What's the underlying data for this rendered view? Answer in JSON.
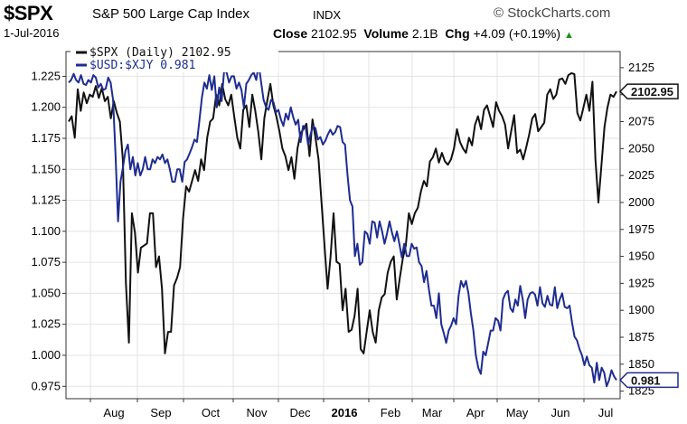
{
  "header": {
    "symbol": "$SPX",
    "name": "S&P 500 Large Cap Index",
    "exchange": "INDX",
    "brand": "© StockCharts.com",
    "date": "1-Jul-2016",
    "close_label": "Close",
    "close_value": "2102.95",
    "volume_label": "Volume",
    "volume_value": "2.1B",
    "chg_label": "Chg",
    "chg_value": "+4.09 (+0.19%)",
    "chg_arrow": "▲"
  },
  "chart_data": {
    "type": "line",
    "x_labels": [
      "Aug",
      "Sep",
      "Oct",
      "Nov",
      "Dec",
      "2016",
      "Feb",
      "Mar",
      "Apr",
      "May",
      "Jun",
      "Jul"
    ],
    "x_label_bold": "2016",
    "left_axis": {
      "ticks": [
        "1.225",
        "1.200",
        "1.175",
        "1.150",
        "1.125",
        "1.100",
        "1.075",
        "1.050",
        "1.025",
        "1.000",
        "0.975"
      ],
      "ylim": [
        0.965,
        1.245
      ]
    },
    "right_axis": {
      "ticks": [
        "2125",
        "2100",
        "2075",
        "2050",
        "2025",
        "2000",
        "1975",
        "1950",
        "1925",
        "1900",
        "1875",
        "1850",
        "1825"
      ],
      "ylim": [
        1818,
        2140
      ]
    },
    "grid": true,
    "legend_position": "top-left",
    "series": [
      {
        "name": "$SPX (Daily) 2102.95",
        "axis": "right",
        "color": "#111111",
        "last_value_label": "2102.95",
        "values": [
          2075,
          2080,
          2060,
          2105,
          2085,
          2102,
          2092,
          2100,
          2098,
          2108,
          2097,
          2106,
          2094,
          2098,
          2078,
          2094,
          2083,
          2075,
          2040,
          1925,
          1870,
          1990,
          1972,
          1935,
          1958,
          1960,
          1962,
          1990,
          1990,
          1940,
          1950,
          1920,
          1860,
          1880,
          1880,
          1923,
          1930,
          1940,
          1985,
          2015,
          2010,
          2020,
          2030,
          2020,
          2040,
          2030,
          2060,
          2075,
          2078,
          2100,
          2090,
          2110,
          2096,
          2090,
          2100,
          2080,
          2060,
          2050,
          2086,
          2090,
          2070,
          2100,
          2085,
          2065,
          2040,
          2078,
          2095,
          2110,
          2090,
          2080,
          2066,
          2050,
          2043,
          2030,
          2042,
          2022,
          2050,
          2064,
          2068,
          2073,
          2043,
          2077,
          2060,
          2040,
          2000,
          1960,
          1920,
          1950,
          1990,
          1945,
          1943,
          1900,
          1920,
          1880,
          1882,
          1895,
          1920,
          1864,
          1860,
          1880,
          1900,
          1880,
          1870,
          1900,
          1912,
          1915,
          1935,
          1945,
          1950,
          1910,
          1930,
          1948,
          1960,
          1990,
          1980,
          1990,
          1995,
          2010,
          2020,
          2015,
          2038,
          2042,
          2050,
          2037,
          2046,
          2038,
          2035,
          2040,
          2050,
          2068,
          2056,
          2050,
          2046,
          2060,
          2053,
          2072,
          2080,
          2068,
          2086,
          2090,
          2080,
          2070,
          2093,
          2085,
          2080,
          2072,
          2050,
          2066,
          2081,
          2046,
          2049,
          2040,
          2051,
          2063,
          2078,
          2082,
          2066,
          2070,
          2074,
          2100,
          2105,
          2096,
          2100,
          2114,
          2115,
          2110,
          2118,
          2120,
          2119,
          2083,
          2076,
          2088,
          2100,
          2085,
          2112,
          2040,
          2000,
          2035,
          2070,
          2088,
          2100,
          2098,
          2103
        ]
      },
      {
        "name": "$USD:$XJY 0.981",
        "axis": "left",
        "color": "#1e2d8f",
        "last_value_label": "0.981",
        "values": [
          1.22,
          1.222,
          1.227,
          1.222,
          1.22,
          1.226,
          1.219,
          1.218,
          1.222,
          1.22,
          1.226,
          1.224,
          1.216,
          1.219,
          1.214,
          1.215,
          1.224,
          1.22,
          1.206,
          1.16,
          1.108,
          1.14,
          1.152,
          1.165,
          1.17,
          1.15,
          1.16,
          1.145,
          1.155,
          1.145,
          1.15,
          1.16,
          1.15,
          1.15,
          1.158,
          1.155,
          1.16,
          1.158,
          1.162,
          1.155,
          1.158,
          1.15,
          1.14,
          1.14,
          1.15,
          1.15,
          1.14,
          1.156,
          1.158,
          1.163,
          1.168,
          1.174,
          1.172,
          1.19,
          1.208,
          1.22,
          1.215,
          1.226,
          1.214,
          1.225,
          1.2,
          1.216,
          1.205,
          1.23,
          1.228,
          1.22,
          1.225,
          1.225,
          1.215,
          1.22,
          1.214,
          1.2,
          1.219,
          1.222,
          1.226,
          1.228,
          1.222,
          1.235,
          1.22,
          1.206,
          1.2,
          1.198,
          1.206,
          1.204,
          1.196,
          1.198,
          1.19,
          1.185,
          1.195,
          1.19,
          1.2,
          1.192,
          1.186,
          1.19,
          1.172,
          1.185,
          1.184,
          1.17,
          1.178,
          1.185,
          1.183,
          1.174,
          1.176,
          1.17,
          1.173,
          1.178,
          1.182,
          1.178,
          1.18,
          1.185,
          1.184,
          1.172,
          1.17,
          1.145,
          1.125,
          1.12,
          1.08,
          1.09,
          1.073,
          1.075,
          1.1,
          1.098,
          1.09,
          1.108,
          1.107,
          1.095,
          1.108,
          1.1,
          1.09,
          1.098,
          1.108,
          1.099,
          1.092,
          1.1,
          1.09,
          1.079,
          1.09,
          1.08,
          1.08,
          1.09,
          1.086,
          1.087,
          1.075,
          1.072,
          1.059,
          1.068,
          1.053,
          1.04,
          1.04,
          1.03,
          1.05,
          1.025,
          1.018,
          1.01,
          1.02,
          1.024,
          1.03,
          1.025,
          1.048,
          1.06,
          1.055,
          1.06,
          1.05,
          1.034,
          1.02,
          1.0,
          0.99,
          0.985,
          1.003,
          1.0,
          1.01,
          1.02,
          1.02,
          1.03,
          1.028,
          1.02,
          1.045,
          1.05,
          1.052,
          1.038,
          1.035,
          1.045,
          1.04,
          1.056,
          1.045,
          1.03,
          1.045,
          1.05,
          1.051,
          1.049,
          1.04,
          1.055,
          1.042,
          1.039,
          1.048,
          1.041,
          1.04,
          1.055,
          1.038,
          1.045,
          1.05,
          1.039,
          1.038,
          1.04,
          1.026,
          1.015,
          1.012,
          1.005,
          1.0,
          0.992,
          0.999,
          0.992,
          0.99,
          0.978,
          0.994,
          0.98,
          0.99,
          0.986,
          0.975,
          0.98,
          0.988,
          0.983,
          0.98
        ]
      }
    ]
  }
}
